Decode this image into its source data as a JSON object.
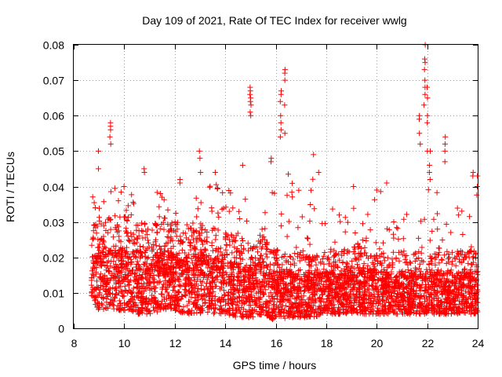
{
  "chart_data": {
    "type": "scatter",
    "title": "Day 109 of 2021, Rate Of TEC Index for receiver wwlg",
    "xlabel": "GPS time / hours",
    "ylabel": "ROTI / TECUs",
    "xlim": [
      8,
      24
    ],
    "ylim": [
      0,
      0.08
    ],
    "xticks": [
      8,
      10,
      12,
      14,
      16,
      18,
      20,
      22,
      24
    ],
    "xtick_labels": [
      "8",
      "10",
      "12",
      "14",
      "16",
      "18",
      "20",
      "22",
      "24"
    ],
    "yticks": [
      0,
      0.01,
      0.02,
      0.03,
      0.04,
      0.05,
      0.06,
      0.07,
      0.08
    ],
    "ytick_labels": [
      "0",
      "0.01",
      "0.02",
      "0.03",
      "0.04",
      "0.05",
      "0.06",
      "0.07",
      "0.08"
    ],
    "grid": true,
    "marker": "+",
    "color": "#ff0000",
    "data_range": {
      "x_start": 8.7,
      "x_end": 24.0
    },
    "envelope": {
      "x": [
        8.7,
        9.0,
        9.5,
        10.0,
        10.5,
        11.0,
        11.5,
        12.0,
        12.5,
        13.0,
        13.5,
        14.0,
        14.5,
        15.0,
        15.5,
        16.0,
        16.5,
        17.0,
        17.5,
        18.0,
        18.5,
        19.0,
        19.5,
        20.0,
        20.5,
        21.0,
        21.5,
        22.0,
        22.5,
        23.0,
        23.5,
        24.0
      ],
      "min": [
        0.008,
        0.005,
        0.005,
        0.005,
        0.004,
        0.004,
        0.005,
        0.005,
        0.004,
        0.004,
        0.004,
        0.004,
        0.003,
        0.003,
        0.004,
        0.002,
        0.003,
        0.003,
        0.003,
        0.004,
        0.004,
        0.004,
        0.004,
        0.004,
        0.004,
        0.004,
        0.004,
        0.004,
        0.004,
        0.004,
        0.004,
        0.004
      ],
      "typical": [
        0.014,
        0.016,
        0.016,
        0.016,
        0.015,
        0.015,
        0.016,
        0.014,
        0.014,
        0.015,
        0.014,
        0.014,
        0.013,
        0.012,
        0.013,
        0.011,
        0.012,
        0.011,
        0.011,
        0.011,
        0.011,
        0.012,
        0.012,
        0.011,
        0.011,
        0.011,
        0.011,
        0.011,
        0.011,
        0.011,
        0.011,
        0.011
      ],
      "max": [
        0.041,
        0.035,
        0.041,
        0.038,
        0.04,
        0.041,
        0.038,
        0.033,
        0.035,
        0.044,
        0.041,
        0.042,
        0.036,
        0.04,
        0.036,
        0.048,
        0.044,
        0.038,
        0.045,
        0.036,
        0.032,
        0.035,
        0.034,
        0.04,
        0.036,
        0.032,
        0.035,
        0.043,
        0.04,
        0.035,
        0.036,
        0.044
      ]
    },
    "spikes": [
      {
        "x": 9.0,
        "y": [
          0.045,
          0.05
        ]
      },
      {
        "x": 9.45,
        "y": [
          0.052,
          0.054,
          0.056,
          0.057,
          0.058
        ]
      },
      {
        "x": 10.0,
        "y": [
          0.04
        ]
      },
      {
        "x": 10.8,
        "y": [
          0.044,
          0.045
        ]
      },
      {
        "x": 12.2,
        "y": [
          0.041,
          0.042
        ]
      },
      {
        "x": 13.0,
        "y": [
          0.044,
          0.048,
          0.05
        ]
      },
      {
        "x": 13.6,
        "y": [
          0.044
        ]
      },
      {
        "x": 14.7,
        "y": [
          0.046
        ]
      },
      {
        "x": 15.0,
        "y": [
          0.06,
          0.061,
          0.063,
          0.064,
          0.065,
          0.066,
          0.067,
          0.068
        ]
      },
      {
        "x": 15.8,
        "y": [
          0.047,
          0.048
        ]
      },
      {
        "x": 16.2,
        "y": [
          0.054,
          0.056,
          0.058,
          0.06,
          0.064,
          0.066,
          0.067
        ]
      },
      {
        "x": 16.35,
        "y": [
          0.055,
          0.063,
          0.07,
          0.072,
          0.073
        ]
      },
      {
        "x": 17.5,
        "y": [
          0.049
        ]
      },
      {
        "x": 17.7,
        "y": [
          0.044
        ]
      },
      {
        "x": 19.1,
        "y": [
          0.04
        ]
      },
      {
        "x": 20.0,
        "y": [
          0.039
        ]
      },
      {
        "x": 20.4,
        "y": [
          0.041
        ]
      },
      {
        "x": 21.7,
        "y": [
          0.052,
          0.055,
          0.059,
          0.06
        ]
      },
      {
        "x": 21.9,
        "y": [
          0.063,
          0.066,
          0.068,
          0.07,
          0.073,
          0.075,
          0.076,
          0.08
        ]
      },
      {
        "x": 22.0,
        "y": [
          0.05,
          0.058,
          0.06,
          0.065,
          0.068
        ]
      },
      {
        "x": 22.1,
        "y": [
          0.042,
          0.044,
          0.046,
          0.05
        ]
      },
      {
        "x": 22.7,
        "y": [
          0.047,
          0.05,
          0.052,
          0.054
        ]
      },
      {
        "x": 23.8,
        "y": [
          0.043,
          0.044
        ]
      },
      {
        "x": 24.0,
        "y": [
          0.04,
          0.041,
          0.043
        ]
      }
    ]
  }
}
